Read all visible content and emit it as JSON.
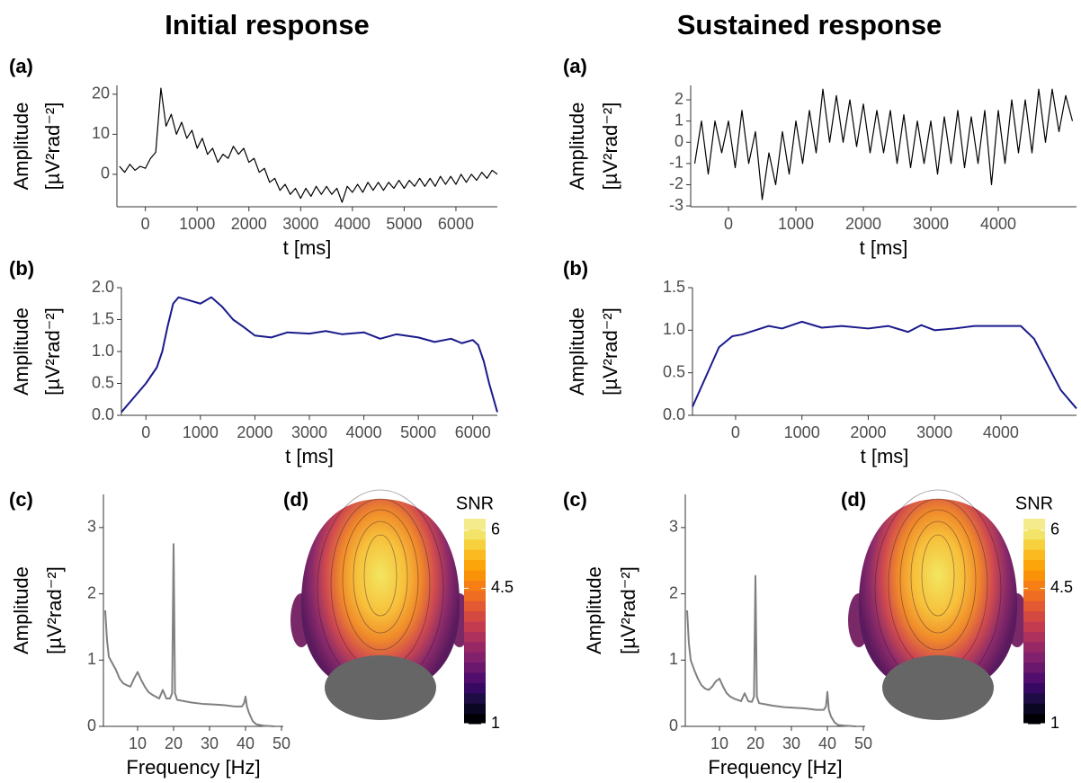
{
  "chart_data": [
    {
      "type": "line",
      "title": "Initial response",
      "panel_label": "(a)",
      "xlabel": "t [ms]",
      "ylabel": [
        "Amplitude",
        "[µV²rad⁻²]"
      ],
      "color": "#000000",
      "x": [
        -500,
        -400,
        -300,
        -200,
        -100,
        0,
        100,
        200,
        300,
        400,
        500,
        600,
        700,
        800,
        900,
        1000,
        1100,
        1200,
        1300,
        1400,
        1500,
        1600,
        1700,
        1800,
        1900,
        2000,
        2100,
        2200,
        2300,
        2400,
        2500,
        2600,
        2700,
        2800,
        2900,
        3000,
        3100,
        3200,
        3300,
        3400,
        3500,
        3600,
        3700,
        3800,
        3900,
        4000,
        4100,
        4200,
        4300,
        4400,
        4500,
        4600,
        4700,
        4800,
        4900,
        5000,
        5100,
        5200,
        5300,
        5400,
        5500,
        5600,
        5700,
        5800,
        5900,
        6000,
        6100,
        6200,
        6300,
        6400,
        6500,
        6600,
        6700,
        6800
      ],
      "values": [
        2,
        0.5,
        2.5,
        1,
        2,
        1.5,
        4,
        5.5,
        21.5,
        12,
        15,
        10,
        13,
        9,
        11,
        6.5,
        9,
        5,
        6.5,
        3,
        5,
        4,
        7,
        5,
        6.5,
        3,
        4,
        0.5,
        1.5,
        -2,
        -1,
        -4,
        -2.5,
        -5,
        -3.5,
        -6,
        -3.5,
        -5.5,
        -3,
        -5,
        -3,
        -5,
        -3.5,
        -7,
        -3,
        -4.5,
        -2.5,
        -4.5,
        -2,
        -4,
        -2,
        -4,
        -2,
        -3.5,
        -1.5,
        -3.5,
        -1.5,
        -3,
        -1,
        -3,
        -1,
        -3,
        -0.5,
        -2.5,
        -0.5,
        -2.5,
        0,
        -2,
        0,
        -1.5,
        0.5,
        -1,
        1,
        0
      ],
      "xlim": [
        -550,
        6800
      ],
      "ylim": [
        -8.1,
        22.2
      ],
      "xticks": [
        0,
        1000,
        2000,
        3000,
        4000,
        5000,
        6000
      ],
      "yticks": [
        0,
        10,
        20
      ]
    },
    {
      "type": "line",
      "panel_label": "(b)",
      "xlabel": "t [ms]",
      "ylabel": [
        "Amplitude",
        "[µV²rad⁻²]"
      ],
      "color": "#1a1a8c",
      "x": [
        -450,
        -250,
        0,
        200,
        300,
        400,
        500,
        600,
        800,
        1000,
        1200,
        1400,
        1600,
        1800,
        2000,
        2300,
        2600,
        3000,
        3300,
        3600,
        4000,
        4300,
        4600,
        5000,
        5300,
        5600,
        5800,
        6000,
        6100,
        6200,
        6300,
        6450
      ],
      "values": [
        0.05,
        0.25,
        0.5,
        0.75,
        1.0,
        1.4,
        1.75,
        1.85,
        1.8,
        1.75,
        1.85,
        1.7,
        1.5,
        1.38,
        1.25,
        1.22,
        1.3,
        1.28,
        1.32,
        1.27,
        1.3,
        1.2,
        1.27,
        1.22,
        1.15,
        1.2,
        1.13,
        1.18,
        1.1,
        0.85,
        0.5,
        0.05
      ],
      "xlim": [
        -450,
        6450
      ],
      "ylim": [
        0,
        2
      ],
      "xticks": [
        0,
        1000,
        2000,
        3000,
        4000,
        5000,
        6000
      ],
      "yticks": [
        {
          "value": 0,
          "label": "0.0"
        },
        0.5,
        {
          "value": 1,
          "label": "1.0"
        },
        1.5,
        {
          "value": 2,
          "label": "2.0"
        }
      ]
    },
    {
      "type": "line",
      "panel_label": "(c)",
      "xlabel": "Frequency [Hz]",
      "ylabel": [
        "Amplitude",
        "[µV²rad⁻²]"
      ],
      "color": "#808080",
      "x": [
        1,
        1.5,
        2,
        3,
        4,
        5,
        6,
        7,
        8,
        9,
        10,
        11,
        12,
        13,
        14,
        15,
        16,
        17,
        18,
        19,
        19.6,
        20,
        20.4,
        21,
        23,
        25,
        28,
        31,
        34,
        37,
        39,
        39.6,
        40,
        40.4,
        41,
        42,
        43,
        45,
        48
      ],
      "values": [
        1.75,
        1.3,
        1.05,
        0.95,
        0.85,
        0.72,
        0.65,
        0.62,
        0.6,
        0.72,
        0.82,
        0.7,
        0.6,
        0.52,
        0.48,
        0.45,
        0.42,
        0.55,
        0.42,
        0.42,
        0.5,
        2.75,
        0.5,
        0.4,
        0.38,
        0.36,
        0.34,
        0.33,
        0.32,
        0.3,
        0.3,
        0.35,
        0.45,
        0.3,
        0.2,
        0.08,
        0.03,
        0.01,
        0
      ],
      "xlim": [
        0.5,
        50.5
      ],
      "ylim": [
        0,
        3.5
      ],
      "xticks": [
        10,
        20,
        30,
        40,
        50
      ],
      "yticks": [
        0,
        1,
        2,
        3
      ]
    },
    {
      "type": "colorbar",
      "panel_label": "(d)",
      "title": "SNR",
      "ylim": [
        1,
        6.3
      ],
      "yticks": [
        1,
        4.5,
        6
      ],
      "colors": [
        "#000004",
        "#0a0722",
        "#1e0c45",
        "#380962",
        "#510e6c",
        "#6a176e",
        "#81206c",
        "#982766",
        "#ae305c",
        "#c33b4f",
        "#d44842",
        "#e35932",
        "#ef6c23",
        "#f67e14",
        "#fa9207",
        "#fca50a",
        "#fbba1f",
        "#f6d03d",
        "#f1e468",
        "#f4ec8c"
      ]
    },
    {
      "type": "line",
      "title": "Sustained response",
      "panel_label": "(a)",
      "xlabel": "t [ms]",
      "ylabel": [
        "Amplitude",
        "[µV²rad⁻²]"
      ],
      "color": "#000000",
      "x": [
        -500,
        -400,
        -300,
        -200,
        -100,
        0,
        100,
        200,
        300,
        400,
        500,
        600,
        700,
        800,
        900,
        1000,
        1100,
        1200,
        1300,
        1400,
        1500,
        1600,
        1700,
        1800,
        1900,
        2000,
        2100,
        2200,
        2300,
        2400,
        2500,
        2600,
        2700,
        2800,
        2900,
        3000,
        3100,
        3200,
        3300,
        3400,
        3500,
        3600,
        3700,
        3800,
        3900,
        4000,
        4100,
        4200,
        4300,
        4400,
        4500,
        4600,
        4700,
        4800,
        4900,
        5000,
        5100
      ],
      "values": [
        -1,
        1,
        -1.5,
        1,
        -0.5,
        1,
        -1.2,
        1.5,
        -1,
        0.5,
        -2.7,
        -0.5,
        -2,
        0.5,
        -1.5,
        1,
        -1,
        1.5,
        -0.5,
        2.5,
        0,
        2.2,
        0,
        2,
        -0.2,
        1.8,
        -0.5,
        1.5,
        -0.5,
        1.5,
        -1,
        1.3,
        -1.2,
        1,
        -1,
        1,
        -1.5,
        1.2,
        -1,
        1.5,
        -1.2,
        1.2,
        -1,
        1.5,
        -2,
        1.5,
        -1,
        2,
        -0.5,
        2,
        -0.5,
        2.5,
        0,
        2.5,
        0.5,
        2.2,
        1
      ],
      "xlim": [
        -560,
        5160
      ],
      "ylim": [
        -3.04,
        2.68
      ],
      "xticks": [
        0,
        1000,
        2000,
        3000,
        4000
      ],
      "yticks": [
        -3,
        -2,
        -1,
        0,
        1,
        2
      ]
    },
    {
      "type": "line",
      "panel_label": "(b)",
      "xlabel": "t [ms]",
      "ylabel": [
        "Amplitude",
        "[µV²rad⁻²]"
      ],
      "color": "#1a1a8c",
      "x": [
        -650,
        -450,
        -250,
        -50,
        100,
        300,
        500,
        700,
        1000,
        1300,
        1600,
        2000,
        2300,
        2600,
        2800,
        3000,
        3300,
        3600,
        4000,
        4300,
        4500,
        4700,
        4900,
        5140
      ],
      "values": [
        0.1,
        0.45,
        0.8,
        0.93,
        0.95,
        1.0,
        1.05,
        1.02,
        1.1,
        1.03,
        1.05,
        1.02,
        1.05,
        0.98,
        1.06,
        1.0,
        1.02,
        1.05,
        1.05,
        1.05,
        0.9,
        0.6,
        0.3,
        0.08
      ],
      "xlim": [
        -650,
        5140
      ],
      "ylim": [
        0,
        1.5
      ],
      "xticks": [
        0,
        1000,
        2000,
        3000,
        4000
      ],
      "yticks": [
        {
          "value": 0,
          "label": "0.0"
        },
        0.5,
        {
          "value": 1,
          "label": "1.0"
        },
        1.5
      ]
    },
    {
      "type": "line",
      "panel_label": "(c)",
      "xlabel": "Frequency [Hz]",
      "ylabel": [
        "Amplitude",
        "[µV²rad⁻²]"
      ],
      "color": "#808080",
      "x": [
        1,
        1.5,
        2,
        3,
        4,
        5,
        6,
        7,
        8,
        9,
        10,
        11,
        12,
        13,
        14,
        15,
        16,
        17,
        18,
        19,
        19.6,
        20,
        20.4,
        21,
        23,
        25,
        28,
        31,
        34,
        37,
        39,
        39.6,
        40,
        40.4,
        41,
        42,
        43,
        45,
        48
      ],
      "values": [
        1.75,
        1.25,
        1.0,
        0.85,
        0.72,
        0.62,
        0.57,
        0.55,
        0.6,
        0.68,
        0.72,
        0.6,
        0.5,
        0.45,
        0.42,
        0.4,
        0.38,
        0.5,
        0.38,
        0.37,
        0.45,
        2.27,
        0.45,
        0.35,
        0.33,
        0.31,
        0.29,
        0.28,
        0.27,
        0.25,
        0.25,
        0.3,
        0.52,
        0.25,
        0.15,
        0.06,
        0.02,
        0.01,
        0
      ],
      "xlim": [
        0.5,
        50.5
      ],
      "ylim": [
        0,
        3.5
      ],
      "xticks": [
        10,
        20,
        30,
        40,
        50
      ],
      "yticks": [
        0,
        1,
        2,
        3
      ]
    },
    {
      "type": "colorbar",
      "panel_label": "(d)",
      "title": "SNR",
      "ylim": [
        1,
        6.3
      ],
      "yticks": [
        1,
        4.5,
        6
      ],
      "colors": [
        "#000004",
        "#0a0722",
        "#1e0c45",
        "#380962",
        "#510e6c",
        "#6a176e",
        "#81206c",
        "#982766",
        "#ae305c",
        "#c33b4f",
        "#d44842",
        "#e35932",
        "#ef6c23",
        "#f67e14",
        "#fa9207",
        "#fca50a",
        "#fbba1f",
        "#f6d03d",
        "#f1e468",
        "#f4ec8c"
      ]
    }
  ]
}
